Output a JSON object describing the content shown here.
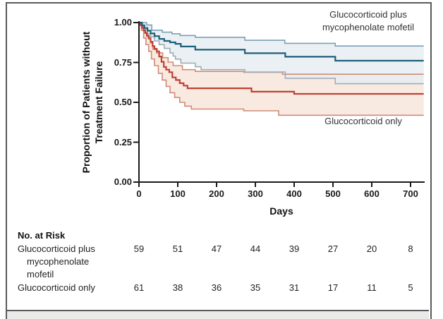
{
  "figure": {
    "y_axis_label_lines": [
      "Proportion of Patients without",
      "Treatment Failure"
    ],
    "x_axis_label": "Days"
  },
  "chart_data": {
    "type": "line",
    "subtype": "kaplan-meier-step-with-confidence-bands",
    "title": "",
    "xlabel": "Days",
    "ylabel": "Proportion of Patients without Treatment Failure",
    "xlim": [
      0,
      734
    ],
    "ylim": [
      0,
      1
    ],
    "grid": false,
    "legend_position": "annotations-inside-plot",
    "x_ticks": [
      0,
      100,
      200,
      300,
      400,
      500,
      600,
      700
    ],
    "y_ticks": [
      {
        "v": 1.0,
        "label": "1.00"
      },
      {
        "v": 0.75,
        "label": "0.75"
      },
      {
        "v": 0.5,
        "label": "0.50"
      },
      {
        "v": 0.25,
        "label": "0.25"
      },
      {
        "v": 0.0,
        "label": "0.00"
      }
    ],
    "axis_color": "#1a1a1a",
    "annotations": {
      "series1": {
        "lines": [
          "Glucocorticoid plus",
          "mycophenolate mofetil"
        ]
      },
      "series2": {
        "lines": [
          "Glucocorticoid only"
        ]
      }
    },
    "series": [
      {
        "name": "Glucocorticoid only",
        "line_color": "#bf4134",
        "band_fill": "#f8eae1",
        "band_opacity": 1,
        "ci_upper_color": "#d08b76",
        "ci_lower_color": "#d08b76",
        "steps": [
          [
            0,
            1.0
          ],
          [
            4,
            0.984
          ],
          [
            8,
            0.967
          ],
          [
            12,
            0.951
          ],
          [
            16,
            0.934
          ],
          [
            20,
            0.918
          ],
          [
            25,
            0.9
          ],
          [
            30,
            0.88
          ],
          [
            35,
            0.852
          ],
          [
            40,
            0.836
          ],
          [
            46,
            0.82
          ],
          [
            52,
            0.787
          ],
          [
            58,
            0.754
          ],
          [
            64,
            0.722
          ],
          [
            70,
            0.705
          ],
          [
            78,
            0.689
          ],
          [
            86,
            0.656
          ],
          [
            95,
            0.64
          ],
          [
            105,
            0.62
          ],
          [
            115,
            0.605
          ],
          [
            125,
            0.588
          ],
          [
            290,
            0.567
          ],
          [
            400,
            0.553
          ],
          [
            734,
            0.553
          ]
        ],
        "ci_upper": [
          [
            0,
            1.0
          ],
          [
            8,
            0.97
          ],
          [
            15,
            0.94
          ],
          [
            22,
            0.912
          ],
          [
            30,
            0.872
          ],
          [
            36,
            0.832
          ],
          [
            45,
            0.81
          ],
          [
            61,
            0.78
          ],
          [
            75,
            0.752
          ],
          [
            88,
            0.73
          ],
          [
            112,
            0.705
          ],
          [
            145,
            0.694
          ],
          [
            270,
            0.688
          ],
          [
            370,
            0.676
          ],
          [
            734,
            0.676
          ]
        ],
        "ci_lower": [
          [
            0,
            1.0
          ],
          [
            6,
            0.952
          ],
          [
            12,
            0.903
          ],
          [
            18,
            0.862
          ],
          [
            25,
            0.82
          ],
          [
            32,
            0.772
          ],
          [
            40,
            0.73
          ],
          [
            50,
            0.682
          ],
          [
            60,
            0.64
          ],
          [
            70,
            0.6
          ],
          [
            80,
            0.56
          ],
          [
            92,
            0.53
          ],
          [
            105,
            0.5
          ],
          [
            118,
            0.476
          ],
          [
            135,
            0.458
          ],
          [
            270,
            0.447
          ],
          [
            360,
            0.419
          ],
          [
            734,
            0.419
          ]
        ]
      },
      {
        "name": "Glucocorticoid plus mycophenolate mofetil",
        "line_color": "#1d5f7a",
        "band_fill": "#e8edf2",
        "band_opacity": 0.85,
        "ci_upper_color": "#7ba1b5",
        "ci_lower_color": "#9fadb8",
        "steps": [
          [
            0,
            1.0
          ],
          [
            8,
            0.983
          ],
          [
            14,
            0.966
          ],
          [
            22,
            0.949
          ],
          [
            30,
            0.932
          ],
          [
            40,
            0.915
          ],
          [
            52,
            0.898
          ],
          [
            65,
            0.885
          ],
          [
            80,
            0.876
          ],
          [
            94,
            0.867
          ],
          [
            108,
            0.85
          ],
          [
            145,
            0.83
          ],
          [
            273,
            0.808
          ],
          [
            377,
            0.786
          ],
          [
            506,
            0.761
          ],
          [
            734,
            0.761
          ]
        ],
        "ci_upper": [
          [
            0,
            1.0
          ],
          [
            20,
            0.985
          ],
          [
            33,
            0.952
          ],
          [
            60,
            0.94
          ],
          [
            85,
            0.93
          ],
          [
            106,
            0.919
          ],
          [
            145,
            0.908
          ],
          [
            273,
            0.889
          ],
          [
            376,
            0.87
          ],
          [
            506,
            0.853
          ],
          [
            734,
            0.853
          ]
        ],
        "ci_lower": [
          [
            0,
            1.0
          ],
          [
            8,
            0.975
          ],
          [
            14,
            0.955
          ],
          [
            22,
            0.93
          ],
          [
            30,
            0.91
          ],
          [
            40,
            0.885
          ],
          [
            52,
            0.862
          ],
          [
            65,
            0.838
          ],
          [
            80,
            0.81
          ],
          [
            88,
            0.79
          ],
          [
            94,
            0.771
          ],
          [
            108,
            0.746
          ],
          [
            145,
            0.723
          ],
          [
            160,
            0.705
          ],
          [
            273,
            0.69
          ],
          [
            377,
            0.651
          ],
          [
            506,
            0.617
          ],
          [
            734,
            0.617
          ]
        ]
      }
    ],
    "at_risk": {
      "title": "No. at Risk",
      "rows": [
        {
          "label_lines": [
            "Glucocorticoid plus",
            "mycophenolate",
            "mofetil"
          ],
          "counts": [
            59,
            51,
            47,
            44,
            39,
            27,
            20,
            8
          ]
        },
        {
          "label_lines": [
            "Glucocorticoid only"
          ],
          "counts": [
            61,
            38,
            36,
            35,
            31,
            17,
            11,
            5
          ]
        }
      ]
    },
    "frame_color": "#595a5c"
  }
}
